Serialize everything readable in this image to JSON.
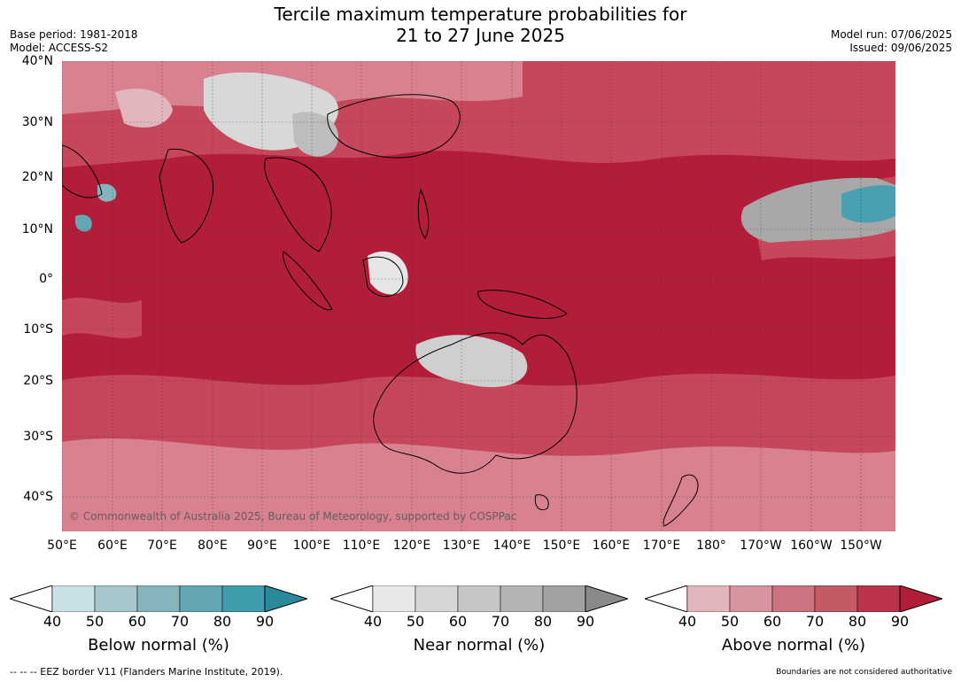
{
  "title": {
    "line1": "Tercile maximum temperature probabilities for",
    "line2": "21 to 27 June 2025"
  },
  "meta": {
    "base_period": "Base period: 1981-2018",
    "model": "Model: ACCESS-S2",
    "model_run": "Model run: 07/06/2025",
    "issued": "Issued: 09/06/2025"
  },
  "map": {
    "lat_labels": [
      "40°N",
      "30°N",
      "20°N",
      "10°N",
      "0°",
      "10°S",
      "20°S",
      "30°S",
      "40°S"
    ],
    "lon_labels": [
      "50°E",
      "60°E",
      "70°E",
      "80°E",
      "90°E",
      "100°E",
      "110°E",
      "120°E",
      "130°E",
      "140°E",
      "150°E",
      "160°E",
      "170°E",
      "180°",
      "170°W",
      "160°W",
      "150°W"
    ],
    "copyright": "© Commonwealth of Australia 2025, Bureau of Meteorology, supported by COSPPac",
    "colors": {
      "dominant_above": "#b21d3a",
      "above_mid": "#c6475c",
      "above_low": "#d8828f",
      "near_normal": "#bdbdbd",
      "below_normal": "#4aa0b0",
      "land_outline": "#000000"
    }
  },
  "legends": [
    {
      "label": "Below normal (%)",
      "ticks": [
        "40",
        "50",
        "60",
        "70",
        "80",
        "90"
      ],
      "colors": [
        "#c9e1e6",
        "#a6c6cc",
        "#87b3bd",
        "#64a7b4",
        "#3f9cac",
        "#2a8a9c"
      ]
    },
    {
      "label": "Near normal (%)",
      "ticks": [
        "40",
        "50",
        "60",
        "70",
        "80",
        "90"
      ],
      "colors": [
        "#e8e8e8",
        "#d6d6d6",
        "#c6c6c6",
        "#b4b4b4",
        "#a1a1a1",
        "#8a8a8a"
      ]
    },
    {
      "label": "Above normal (%)",
      "ticks": [
        "40",
        "50",
        "60",
        "70",
        "80",
        "90"
      ],
      "colors": [
        "#e3b6be",
        "#d6949e",
        "#cb747f",
        "#c55a67",
        "#b9344a",
        "#b21d3a"
      ]
    }
  ],
  "footer": {
    "eez_note": "--  --  -- EEZ border V11 (Flanders Marine Institute, 2019).",
    "disclaimer": "Boundaries are not considered authoritative"
  }
}
